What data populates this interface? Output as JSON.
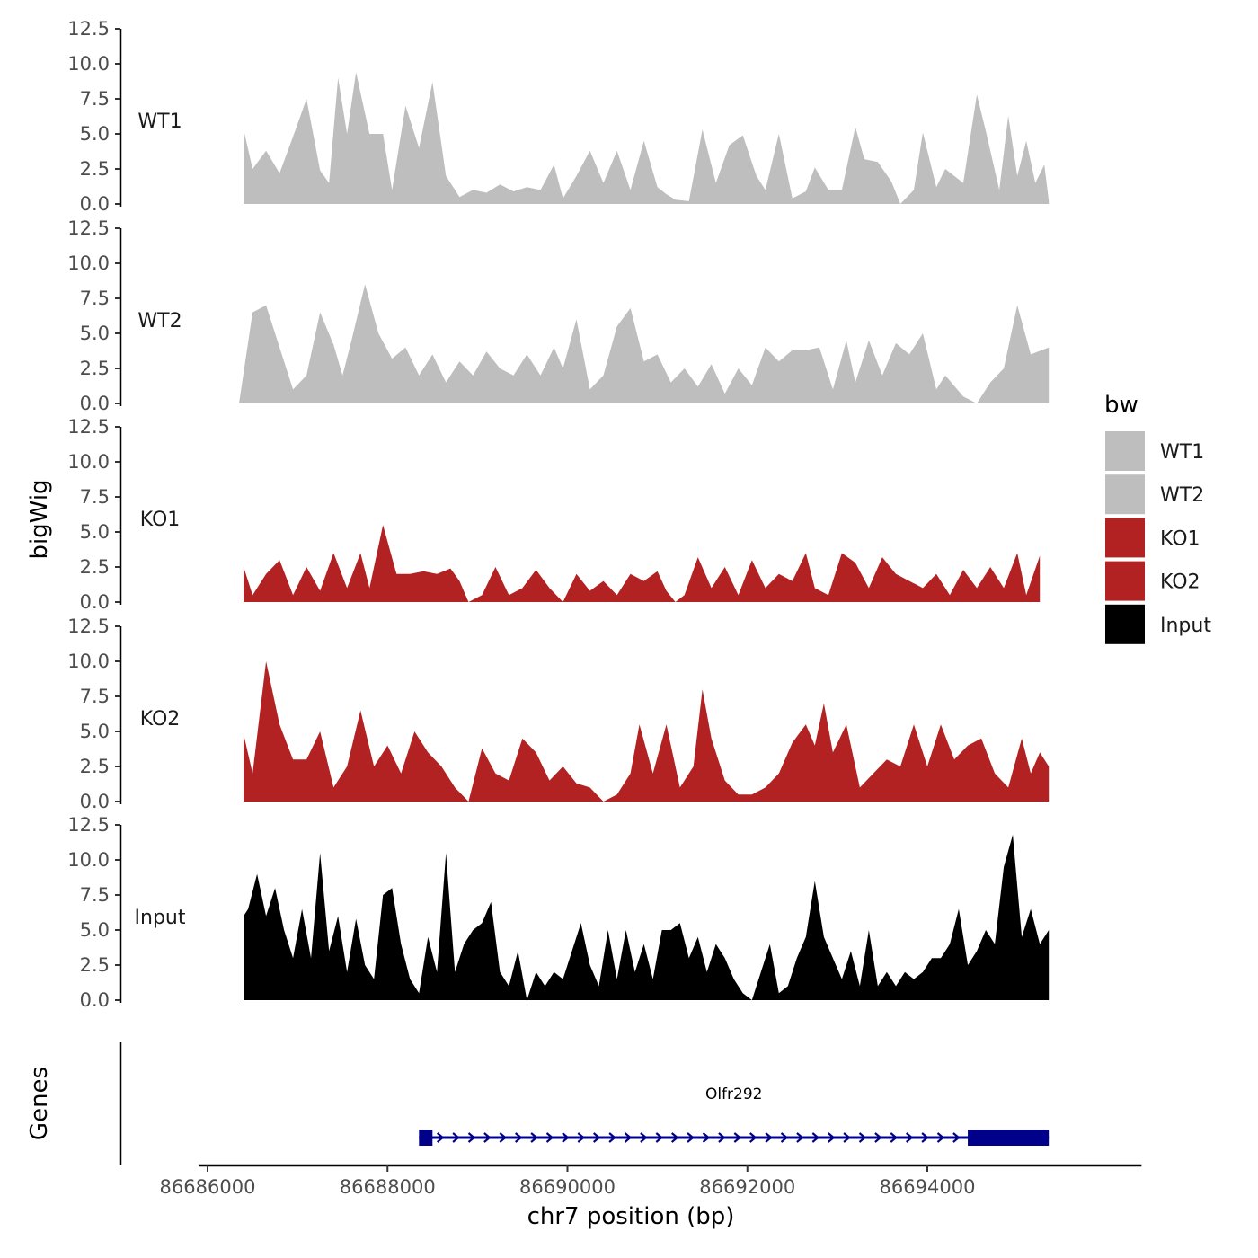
{
  "chart_data": {
    "type": "area",
    "ylabel": "bigWig",
    "xlabel": "chr7 position (bp)",
    "ylim": [
      0,
      12.5
    ],
    "y_ticks": [
      "0.0",
      "2.5",
      "5.0",
      "7.5",
      "10.0",
      "12.5"
    ],
    "y_tick_values": [
      0,
      2.5,
      5,
      7.5,
      10,
      12.5
    ],
    "xlim": [
      86685900,
      86696800
    ],
    "x_ticks": [
      "86686000",
      "86688000",
      "86690000",
      "86692000",
      "86694000"
    ],
    "x_tick_values": [
      86686000,
      86688000,
      86690000,
      86692000,
      86694000
    ],
    "colors": {
      "WT": "#bebebe",
      "KO": "#b22222",
      "Input": "#000000",
      "gene": "#00008b"
    },
    "tracks": [
      {
        "name": "WT1",
        "color": "#bebebe",
        "x": [
          86686400,
          86686500,
          86686650,
          86686800,
          86686950,
          86687100,
          86687250,
          86687350,
          86687450,
          86687550,
          86687650,
          86687800,
          86687950,
          86688050,
          86688200,
          86688350,
          86688500,
          86688650,
          86688800,
          86688950,
          86689100,
          86689250,
          86689400,
          86689550,
          86689700,
          86689850,
          86689950,
          86690100,
          86690250,
          86690400,
          86690550,
          86690700,
          86690850,
          86691000,
          86691100,
          86691200,
          86691350,
          86691500,
          86691650,
          86691800,
          86691950,
          86692100,
          86692200,
          86692350,
          86692500,
          86692650,
          86692750,
          86692900,
          86693050,
          86693200,
          86693300,
          86693450,
          86693600,
          86693700,
          86693850,
          86693950,
          86694100,
          86694200,
          86694400,
          86694550,
          86694650,
          86694800,
          86694900,
          86695000,
          86695100,
          86695200,
          86695300,
          86695350
        ],
        "y": [
          5.3,
          2.5,
          3.8,
          2.2,
          4.8,
          7.5,
          2.4,
          1.5,
          9.0,
          5.0,
          9.4,
          5.0,
          5.0,
          1.0,
          7.0,
          4.0,
          8.7,
          2.0,
          0.5,
          1.0,
          0.8,
          1.4,
          0.9,
          1.2,
          1.0,
          2.8,
          0.4,
          2.0,
          3.8,
          1.5,
          3.8,
          1.0,
          4.5,
          1.2,
          0.7,
          0.3,
          0.2,
          5.3,
          1.5,
          4.2,
          4.9,
          2.0,
          1.0,
          5.0,
          0.4,
          0.9,
          2.6,
          1.0,
          1.0,
          5.5,
          3.2,
          3.0,
          1.6,
          0.0,
          1.0,
          5.1,
          1.2,
          2.5,
          1.5,
          7.8,
          5.2,
          1.0,
          6.3,
          2.0,
          4.5,
          1.5,
          2.8,
          0.2
        ]
      },
      {
        "name": "WT2",
        "color": "#bebebe",
        "x": [
          86686350,
          86686500,
          86686650,
          86686800,
          86686950,
          86687100,
          86687250,
          86687400,
          86687500,
          86687600,
          86687750,
          86687900,
          86688050,
          86688200,
          86688350,
          86688500,
          86688650,
          86688800,
          86688950,
          86689100,
          86689250,
          86689400,
          86689550,
          86689700,
          86689850,
          86689950,
          86690100,
          86690250,
          86690400,
          86690550,
          86690700,
          86690850,
          86691000,
          86691150,
          86691300,
          86691450,
          86691600,
          86691750,
          86691900,
          86692050,
          86692200,
          86692350,
          86692500,
          86692650,
          86692800,
          86692950,
          86693100,
          86693200,
          86693350,
          86693500,
          86693650,
          86693800,
          86693950,
          86694100,
          86694200,
          86694400,
          86694550,
          86694700,
          86694850,
          86695000,
          86695150,
          86695350
        ],
        "y": [
          0.0,
          6.5,
          7.0,
          4.0,
          1.0,
          2.0,
          6.5,
          4.2,
          2.0,
          4.5,
          8.5,
          5.0,
          3.2,
          4.0,
          2.0,
          3.5,
          1.5,
          3.0,
          2.0,
          3.7,
          2.5,
          2.0,
          3.5,
          2.0,
          4.0,
          2.5,
          6.0,
          1.0,
          2.0,
          5.5,
          6.8,
          3.0,
          3.5,
          1.5,
          2.5,
          1.2,
          2.8,
          0.7,
          2.5,
          1.3,
          4.0,
          3.0,
          3.8,
          3.8,
          4.0,
          1.0,
          4.5,
          1.5,
          4.5,
          2.0,
          4.3,
          3.5,
          5.0,
          1.0,
          2.0,
          0.5,
          0.0,
          1.5,
          2.5,
          7.0,
          3.5,
          4.0
        ]
      },
      {
        "name": "KO1",
        "color": "#b22222",
        "x": [
          86686400,
          86686500,
          86686650,
          86686800,
          86686950,
          86687100,
          86687250,
          86687400,
          86687550,
          86687700,
          86687800,
          86687950,
          86688100,
          86688250,
          86688400,
          86688550,
          86688700,
          86688800,
          86688900,
          86689050,
          86689200,
          86689350,
          86689500,
          86689650,
          86689800,
          86689950,
          86690100,
          86690250,
          86690400,
          86690550,
          86690700,
          86690850,
          86691000,
          86691100,
          86691200,
          86691300,
          86691450,
          86691600,
          86691750,
          86691900,
          86692050,
          86692200,
          86692350,
          86692500,
          86692650,
          86692750,
          86692900,
          86693050,
          86693200,
          86693350,
          86693500,
          86693650,
          86693800,
          86693950,
          86694100,
          86694250,
          86694400,
          86694550,
          86694700,
          86694850,
          86695000,
          86695100,
          86695250
        ],
        "y": [
          2.5,
          0.5,
          2.0,
          3.0,
          0.5,
          2.5,
          0.8,
          3.5,
          1.0,
          3.5,
          1.0,
          5.5,
          2.0,
          2.0,
          2.2,
          2.0,
          2.4,
          1.5,
          0.0,
          0.5,
          2.5,
          0.5,
          1.0,
          2.3,
          1.0,
          0.0,
          2.0,
          0.8,
          1.5,
          0.5,
          2.0,
          1.5,
          2.2,
          0.8,
          0.0,
          0.5,
          3.2,
          1.0,
          2.5,
          0.5,
          3.0,
          1.0,
          2.0,
          1.5,
          3.5,
          1.0,
          0.5,
          3.5,
          2.8,
          1.0,
          3.2,
          2.0,
          1.5,
          1.0,
          2.0,
          0.5,
          2.3,
          1.0,
          2.5,
          1.0,
          3.5,
          0.5,
          3.3
        ]
      },
      {
        "name": "KO2",
        "color": "#b22222",
        "x": [
          86686400,
          86686500,
          86686650,
          86686800,
          86686950,
          86687100,
          86687250,
          86687400,
          86687550,
          86687700,
          86687850,
          86688000,
          86688150,
          86688300,
          86688450,
          86688600,
          86688750,
          86688900,
          86689050,
          86689200,
          86689350,
          86689500,
          86689650,
          86689800,
          86689950,
          86690100,
          86690250,
          86690400,
          86690550,
          86690700,
          86690800,
          86690950,
          86691100,
          86691250,
          86691400,
          86691500,
          86691600,
          86691750,
          86691900,
          86692050,
          86692200,
          86692350,
          86692500,
          86692650,
          86692750,
          86692850,
          86692950,
          86693100,
          86693250,
          86693400,
          86693550,
          86693700,
          86693850,
          86694000,
          86694150,
          86694300,
          86694450,
          86694600,
          86694750,
          86694900,
          86695050,
          86695150,
          86695250,
          86695350
        ],
        "y": [
          4.8,
          2.0,
          10.0,
          5.5,
          3.0,
          3.0,
          5.0,
          1.0,
          2.5,
          6.5,
          2.5,
          4.0,
          2.0,
          5.0,
          3.5,
          2.5,
          1.0,
          0.0,
          3.8,
          2.0,
          1.5,
          4.5,
          3.5,
          1.5,
          2.5,
          1.3,
          1.0,
          0.0,
          0.5,
          2.0,
          5.5,
          2.0,
          5.5,
          1.0,
          2.5,
          8.0,
          4.5,
          1.5,
          0.5,
          0.5,
          1.0,
          2.0,
          4.2,
          5.5,
          4.0,
          7.0,
          3.5,
          5.5,
          1.0,
          2.0,
          3.0,
          2.5,
          5.5,
          2.5,
          5.5,
          3.0,
          4.0,
          4.5,
          2.0,
          1.0,
          4.5,
          2.0,
          3.5,
          2.5
        ]
      },
      {
        "name": "Input",
        "color": "#000000",
        "x": [
          86686400,
          86686450,
          86686550,
          86686650,
          86686750,
          86686850,
          86686950,
          86687050,
          86687150,
          86687250,
          86687350,
          86687450,
          86687550,
          86687650,
          86687750,
          86687850,
          86687950,
          86688050,
          86688150,
          86688250,
          86688350,
          86688450,
          86688550,
          86688650,
          86688750,
          86688850,
          86688950,
          86689050,
          86689150,
          86689250,
          86689350,
          86689450,
          86689550,
          86689650,
          86689750,
          86689850,
          86689950,
          86690050,
          86690150,
          86690250,
          86690350,
          86690450,
          86690550,
          86690650,
          86690750,
          86690850,
          86690950,
          86691050,
          86691150,
          86691250,
          86691350,
          86691450,
          86691550,
          86691650,
          86691750,
          86691850,
          86691950,
          86692050,
          86692150,
          86692250,
          86692350,
          86692450,
          86692550,
          86692650,
          86692750,
          86692850,
          86692950,
          86693050,
          86693150,
          86693250,
          86693350,
          86693450,
          86693550,
          86693650,
          86693750,
          86693850,
          86693950,
          86694050,
          86694150,
          86694250,
          86694350,
          86694450,
          86694550,
          86694650,
          86694750,
          86694850,
          86694950,
          86695050,
          86695150,
          86695250,
          86695350
        ],
        "y": [
          6.0,
          6.5,
          9.0,
          6.0,
          8.0,
          5.0,
          3.0,
          6.5,
          3.0,
          10.5,
          3.5,
          6.0,
          2.0,
          5.8,
          2.5,
          1.5,
          7.5,
          8.0,
          4.0,
          1.5,
          0.5,
          4.5,
          2.0,
          10.5,
          2.0,
          4.0,
          5.0,
          5.5,
          7.0,
          2.0,
          1.0,
          3.5,
          0.0,
          2.0,
          1.0,
          2.0,
          1.5,
          3.5,
          5.5,
          2.5,
          1.0,
          5.0,
          1.5,
          5.0,
          2.0,
          4.0,
          1.5,
          5.0,
          5.0,
          5.5,
          3.0,
          4.5,
          2.0,
          4.0,
          3.0,
          1.5,
          0.5,
          0.0,
          2.0,
          4.0,
          0.5,
          1.0,
          3.0,
          4.5,
          8.5,
          4.5,
          3.0,
          1.5,
          3.5,
          1.0,
          5.0,
          1.0,
          2.0,
          1.0,
          2.0,
          1.5,
          2.0,
          3.0,
          3.0,
          4.0,
          6.5,
          2.5,
          3.5,
          5.0,
          4.0,
          9.5,
          11.8,
          4.5,
          6.5,
          4.0,
          5.0
        ]
      }
    ],
    "gene": {
      "name": "Olfr292",
      "track_label": "Genes",
      "start": 86688350,
      "end": 86695350,
      "strand": "+",
      "exons": [
        [
          86688350,
          86688500
        ],
        [
          86694450,
          86695350
        ]
      ]
    },
    "legend": {
      "title": "bw",
      "position": "right",
      "entries": [
        {
          "label": "WT1",
          "color": "#bebebe"
        },
        {
          "label": "WT2",
          "color": "#bebebe"
        },
        {
          "label": "KO1",
          "color": "#b22222"
        },
        {
          "label": "KO2",
          "color": "#b22222"
        },
        {
          "label": "Input",
          "color": "#000000"
        }
      ]
    }
  }
}
